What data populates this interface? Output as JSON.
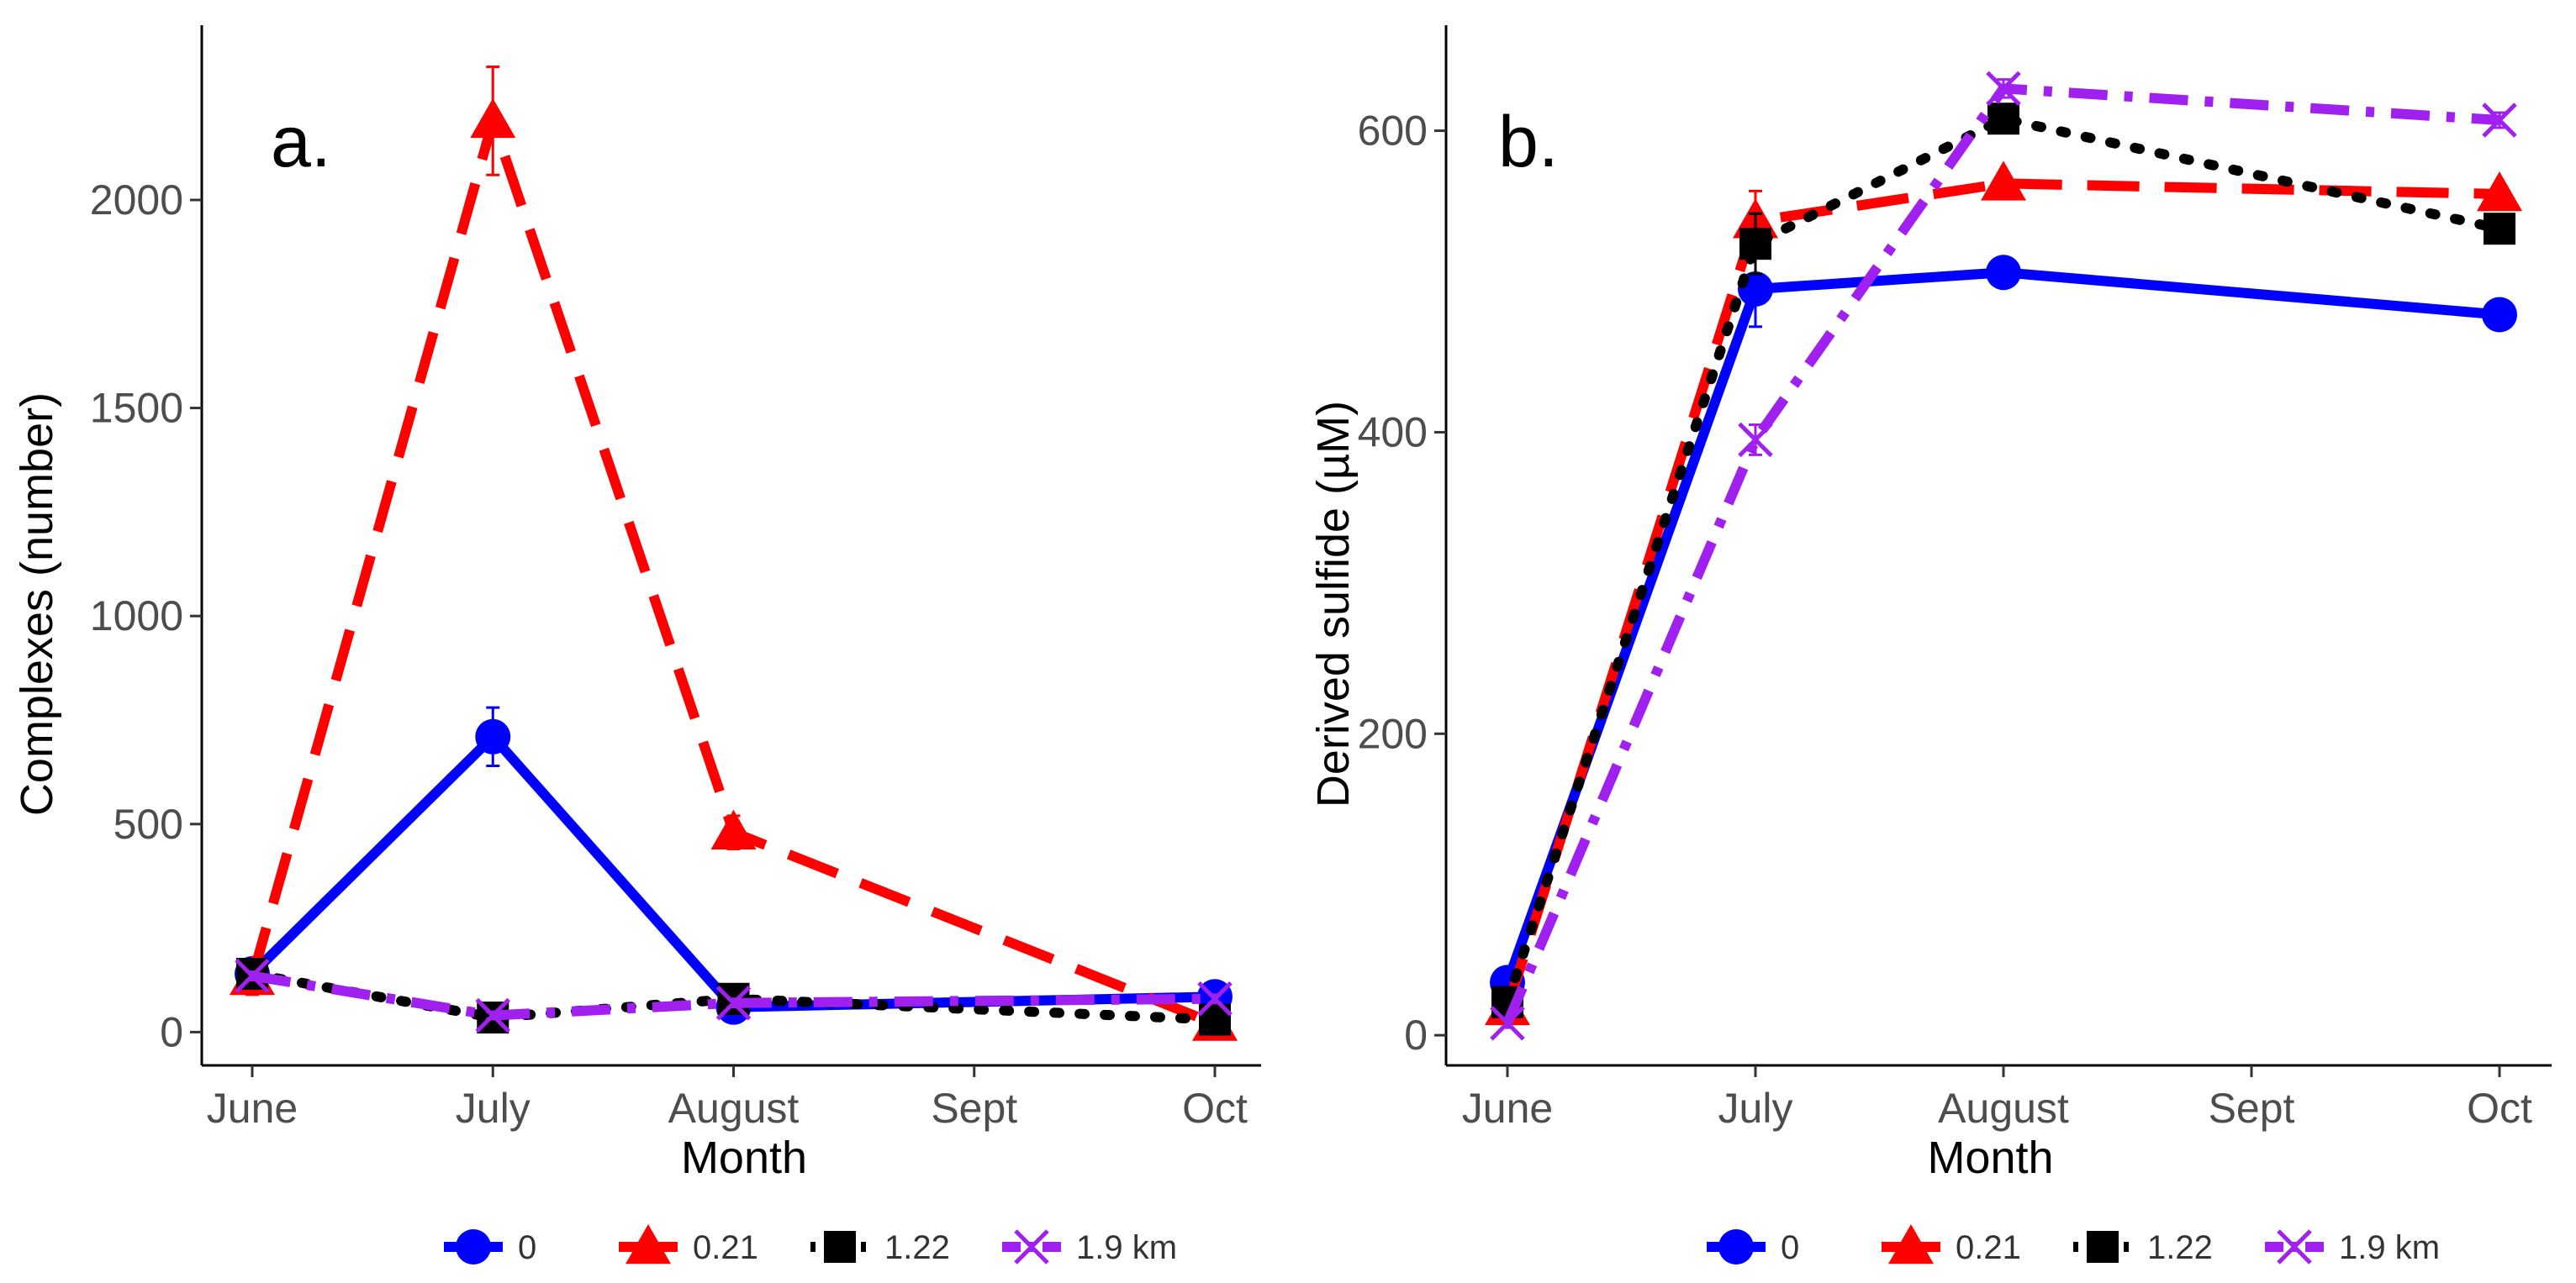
{
  "chart_data": [
    {
      "type": "line",
      "panel_label": "a.",
      "xlabel": "Month",
      "ylabel": "Complexes (number)",
      "categories": [
        "June",
        "July",
        "August",
        "Sept",
        "Oct"
      ],
      "x_positions": [
        0,
        1,
        2,
        3,
        4
      ],
      "ylim": [
        -80,
        2420
      ],
      "yticks": [
        0,
        500,
        1000,
        1500,
        2000
      ],
      "series": [
        {
          "name": "0",
          "color": "#0000FF",
          "marker": "circle",
          "dash": "solid",
          "x": [
            0,
            1,
            2,
            4
          ],
          "values": [
            140,
            710,
            60,
            85
          ],
          "errors": [
            30,
            70,
            10,
            10
          ]
        },
        {
          "name": "0.21",
          "color": "#FF0000",
          "marker": "triangle",
          "dash": "longdash",
          "x": [
            0,
            1,
            2,
            4
          ],
          "values": [
            130,
            2190,
            480,
            20
          ],
          "errors": [
            40,
            130,
            40,
            10
          ]
        },
        {
          "name": "1.22",
          "color": "#000000",
          "marker": "square",
          "dash": "dotted",
          "x": [
            0,
            1,
            2,
            4
          ],
          "values": [
            140,
            35,
            80,
            30
          ],
          "errors": [
            20,
            10,
            10,
            10
          ]
        },
        {
          "name": "1.9 km",
          "color": "#A020F0",
          "marker": "x",
          "dash": "dashdot",
          "x": [
            0,
            1,
            2,
            4
          ],
          "values": [
            135,
            40,
            70,
            80
          ],
          "errors": [
            10,
            8,
            10,
            10
          ]
        }
      ]
    },
    {
      "type": "line",
      "panel_label": "b.",
      "xlabel": "Month",
      "ylabel": "Derived sulfide (µM)",
      "categories": [
        "June",
        "July",
        "August",
        "Sept",
        "Oct"
      ],
      "x_positions": [
        0,
        1,
        2,
        3,
        4
      ],
      "ylim": [
        -20,
        670
      ],
      "yticks": [
        0,
        200,
        400,
        600
      ],
      "series": [
        {
          "name": "0",
          "color": "#0000FF",
          "marker": "circle",
          "dash": "solid",
          "x": [
            0,
            1,
            2,
            4
          ],
          "values": [
            35,
            495,
            506,
            478
          ],
          "errors": [
            5,
            25,
            5,
            8
          ]
        },
        {
          "name": "0.21",
          "color": "#FF0000",
          "marker": "triangle",
          "dash": "longdash",
          "x": [
            0,
            1,
            2,
            4
          ],
          "values": [
            18,
            540,
            565,
            558
          ],
          "errors": [
            5,
            20,
            6,
            5
          ]
        },
        {
          "name": "1.22",
          "color": "#000000",
          "marker": "square",
          "dash": "dotted",
          "x": [
            0,
            1,
            2,
            4
          ],
          "values": [
            22,
            525,
            608,
            535
          ],
          "errors": [
            5,
            20,
            6,
            5
          ]
        },
        {
          "name": "1.9 km",
          "color": "#A020F0",
          "marker": "x",
          "dash": "dashdot",
          "x": [
            0,
            1,
            2,
            4
          ],
          "values": [
            8,
            395,
            628,
            607
          ],
          "errors": [
            3,
            10,
            6,
            5
          ]
        }
      ]
    }
  ],
  "legend": {
    "items": [
      {
        "label": "0",
        "color": "#0000FF",
        "marker": "circle",
        "dash": "solid"
      },
      {
        "label": "0.21",
        "color": "#FF0000",
        "marker": "triangle",
        "dash": "longdash"
      },
      {
        "label": "1.22",
        "color": "#000000",
        "marker": "square",
        "dash": "dotted"
      },
      {
        "label": "1.9 km",
        "color": "#A020F0",
        "marker": "x",
        "dash": "dashdot"
      }
    ]
  }
}
